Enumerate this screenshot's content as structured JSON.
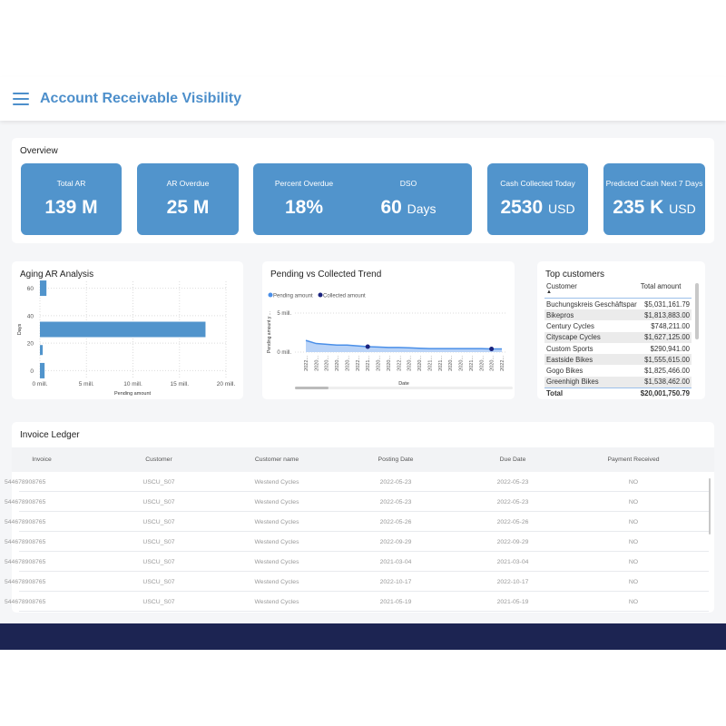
{
  "header": {
    "title": "Account Receivable Visibility",
    "menu_icon": "hamburger-menu-icon"
  },
  "overview": {
    "title": "Overview",
    "cards": [
      {
        "label": "Total AR",
        "value": "139 M",
        "unit": ""
      },
      {
        "label": "AR Overdue",
        "value": "25 M",
        "unit": ""
      },
      {
        "label": "Percent Overdue",
        "value": "18%",
        "unit": ""
      },
      {
        "label": "DSO",
        "value": "60",
        "unit": "Days"
      },
      {
        "label": "Cash Collected Today",
        "value": "2530",
        "unit": "USD"
      },
      {
        "label": "Predicted Cash Next 7 Days",
        "value": "235 K",
        "unit": "USD"
      }
    ]
  },
  "chart_data": [
    {
      "type": "bar",
      "orientation": "horizontal",
      "title": "Aging AR Analysis",
      "xlabel": "Pending amount",
      "ylabel": "Days",
      "y": [
        0,
        15,
        30,
        60
      ],
      "values": [
        0.5,
        0.3,
        17.8,
        0.7
      ],
      "unit": "mill.",
      "xlim": [
        0,
        20
      ],
      "ylim": [
        -5,
        65
      ],
      "xticks": [
        "0 mill.",
        "5 mill.",
        "10 mill.",
        "15 mill.",
        "20 mill."
      ],
      "yticks": [
        "0",
        "20",
        "40",
        "60"
      ],
      "grid": true,
      "color": "#5194cc"
    },
    {
      "type": "area",
      "title": "Pending vs Collected Trend",
      "xlabel": "Date",
      "ylabel": "Pending amount y ...",
      "legend": "top-left",
      "categories": [
        "2022...",
        "2020...",
        "2020...",
        "2020...",
        "2020...",
        "2022...",
        "2021...",
        "2020...",
        "2020...",
        "2022...",
        "2020...",
        "2020...",
        "2021...",
        "2021...",
        "2020...",
        "2020...",
        "2021...",
        "2020...",
        "2020...",
        "2022..."
      ],
      "series": [
        {
          "name": "Pending amount",
          "color": "#4a8fe8",
          "values": [
            1.5,
            1.1,
            1.0,
            0.9,
            0.9,
            0.8,
            0.7,
            0.65,
            0.6,
            0.6,
            0.55,
            0.5,
            0.45,
            0.45,
            0.45,
            0.45,
            0.45,
            0.45,
            0.4,
            0.4
          ]
        },
        {
          "name": "Collected amount",
          "color": "#1a237e",
          "points": [
            {
              "index": 6,
              "value": 0.7
            },
            {
              "index": 18,
              "value": 0.4
            }
          ]
        }
      ],
      "ylim": [
        0,
        5
      ],
      "yticks": [
        "0 mill.",
        "5 mill."
      ],
      "grid": true
    }
  ],
  "top_customers": {
    "title": "Top customers",
    "columns": [
      "Customer",
      "Total amount"
    ],
    "rows": [
      [
        "Buchungskreis Geschäftspar",
        "$5,031,161.79"
      ],
      [
        "Bikepros",
        "$1,813,883.00"
      ],
      [
        "Century Cycles",
        "$748,211.00"
      ],
      [
        "Cityscape Cycles",
        "$1,627,125.00"
      ],
      [
        "Custom Sports",
        "$290,941.00"
      ],
      [
        "Eastside Bikes",
        "$1,555,615.00"
      ],
      [
        "Gogo Bikes",
        "$1,825,466.00"
      ],
      [
        "Greenhigh Bikes",
        "$1,538,462.00"
      ]
    ],
    "total": [
      "Total",
      "$20,001,750.79"
    ]
  },
  "ledger": {
    "title": "Invoice Ledger",
    "columns": [
      "Invoice",
      "Customer",
      "Customer name",
      "Posting Date",
      "Due Date",
      "Payment Received"
    ],
    "rows": [
      [
        "544678908765",
        "USCU_S07",
        "Westend Cycles",
        "2022-05-23",
        "2022-05-23",
        "NO"
      ],
      [
        "544678908765",
        "USCU_S07",
        "Westend Cycles",
        "2022-05-23",
        "2022-05-23",
        "NO"
      ],
      [
        "544678908765",
        "USCU_S07",
        "Westend Cycles",
        "2022-05-26",
        "2022-05-26",
        "NO"
      ],
      [
        "544678908765",
        "USCU_S07",
        "Westend Cycles",
        "2022-09-29",
        "2022-09-29",
        "NO"
      ],
      [
        "544678908765",
        "USCU_S07",
        "Westend Cycles",
        "2021-03-04",
        "2021-03-04",
        "NO"
      ],
      [
        "544678908765",
        "USCU_S07",
        "Westend Cycles",
        "2022-10-17",
        "2022-10-17",
        "NO"
      ],
      [
        "544678908765",
        "USCU_S07",
        "Westend Cycles",
        "2021-05-19",
        "2021-05-19",
        "NO"
      ]
    ]
  }
}
